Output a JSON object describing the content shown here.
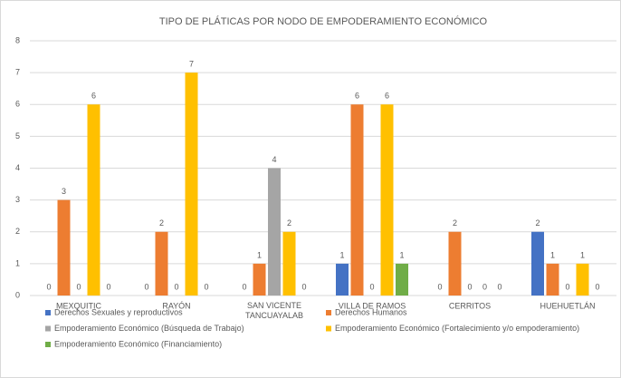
{
  "chart_data": {
    "type": "bar",
    "title": "TIPO DE PLÁTICAS POR NODO DE EMPODERAMIENTO ECONÓMICO",
    "categories": [
      "MEXQUITIC",
      "RAYÓN",
      "SAN VICENTE TANCUAYALAB",
      "VILLA DE RAMOS",
      "CERRITOS",
      "HUEHUETLÁN"
    ],
    "series": [
      {
        "name": "Derechos Sexuales y reproductivos",
        "color": "#4472c4",
        "values": [
          0,
          0,
          0,
          1,
          0,
          2
        ]
      },
      {
        "name": "Derechos Humanos",
        "color": "#ed7d31",
        "values": [
          3,
          2,
          1,
          6,
          2,
          1
        ]
      },
      {
        "name": "Empoderamiento Económico (Búsqueda de Trabajo)",
        "color": "#a5a5a5",
        "values": [
          0,
          0,
          4,
          0,
          0,
          0
        ]
      },
      {
        "name": "Empoderamiento Económico (Fortalecimiento y/o empoderamiento)",
        "color": "#ffc000",
        "values": [
          6,
          7,
          2,
          6,
          0,
          1
        ]
      },
      {
        "name": "Empoderamiento Económico (Financiamiento)",
        "color": "#70ad47",
        "values": [
          0,
          0,
          0,
          1,
          0,
          0
        ]
      }
    ],
    "ylim": [
      0,
      8
    ],
    "yticks": [
      0,
      1,
      2,
      3,
      4,
      5,
      6,
      7,
      8
    ],
    "grid": true,
    "legend": "bottom"
  }
}
